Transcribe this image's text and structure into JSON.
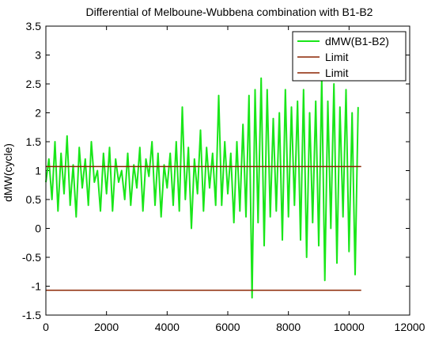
{
  "chart_data": {
    "type": "line",
    "title": "Differential of Melboune-Wubbena combination with B1-B2",
    "xlabel": "",
    "ylabel": "dMW(cycle)",
    "xlim": [
      0,
      12000
    ],
    "ylim": [
      -1.5,
      3.5
    ],
    "x_ticks": [
      "0",
      "2000",
      "4000",
      "6000",
      "8000",
      "10000",
      "12000"
    ],
    "y_ticks": [
      "-1.5",
      "-1",
      "-0.5",
      "0",
      "0.5",
      "1",
      "1.5",
      "2",
      "2.5",
      "3",
      "3.5"
    ],
    "grid": false,
    "legend_position": "top-right",
    "series": [
      {
        "name": "dMW(B1-B2)",
        "color": "#19e619",
        "x": [
          0,
          100,
          200,
          300,
          400,
          500,
          600,
          700,
          800,
          900,
          1000,
          1100,
          1200,
          1300,
          1400,
          1500,
          1600,
          1700,
          1800,
          1900,
          2000,
          2100,
          2200,
          2300,
          2400,
          2500,
          2600,
          2700,
          2800,
          2900,
          3000,
          3100,
          3200,
          3300,
          3400,
          3500,
          3600,
          3700,
          3800,
          3900,
          4000,
          4100,
          4200,
          4300,
          4400,
          4500,
          4600,
          4700,
          4800,
          4900,
          5000,
          5100,
          5200,
          5300,
          5400,
          5500,
          5600,
          5700,
          5800,
          5900,
          6000,
          6100,
          6200,
          6300,
          6400,
          6500,
          6600,
          6700,
          6800,
          6900,
          7000,
          7100,
          7200,
          7300,
          7400,
          7500,
          7600,
          7700,
          7800,
          7900,
          8000,
          8100,
          8200,
          8300,
          8400,
          8500,
          8600,
          8700,
          8800,
          8900,
          9000,
          9100,
          9200,
          9300,
          9400,
          9500,
          9600,
          9700,
          9800,
          9900,
          10000,
          10100,
          10200,
          10300
        ],
        "values": [
          0.8,
          1.2,
          0.5,
          1.5,
          0.3,
          1.3,
          0.6,
          1.6,
          0.4,
          1.1,
          0.2,
          1.4,
          0.7,
          1.2,
          0.4,
          1.5,
          0.8,
          1.0,
          0.3,
          1.3,
          0.6,
          1.4,
          0.3,
          1.2,
          0.8,
          1.0,
          0.5,
          1.3,
          0.4,
          1.1,
          0.7,
          1.4,
          0.3,
          1.2,
          0.9,
          1.5,
          0.4,
          1.3,
          0.2,
          1.1,
          0.7,
          1.3,
          0.4,
          1.5,
          0.3,
          2.1,
          0.5,
          1.4,
          0.0,
          1.2,
          0.6,
          1.7,
          0.3,
          1.4,
          0.7,
          1.3,
          0.4,
          2.3,
          0.4,
          1.5,
          0.6,
          1.3,
          0.1,
          1.5,
          0.3,
          1.8,
          0.2,
          2.3,
          -1.2,
          2.4,
          0.1,
          2.6,
          -0.3,
          2.4,
          0.2,
          1.9,
          0.3,
          2.0,
          -0.2,
          2.4,
          0.2,
          2.1,
          0.4,
          2.2,
          -0.2,
          2.4,
          -0.5,
          2.0,
          0.1,
          2.2,
          -0.3,
          2.6,
          -0.9,
          2.2,
          0.0,
          2.5,
          -0.6,
          2.1,
          0.2,
          2.4,
          -0.4,
          2.0,
          -0.8,
          2.1
        ]
      },
      {
        "name": "Limit",
        "color": "#8b2500",
        "x": [
          0,
          10400
        ],
        "values": [
          1.07,
          1.07
        ]
      },
      {
        "name": "Limit",
        "color": "#8b2500",
        "x": [
          0,
          10400
        ],
        "values": [
          -1.07,
          -1.07
        ]
      }
    ]
  }
}
